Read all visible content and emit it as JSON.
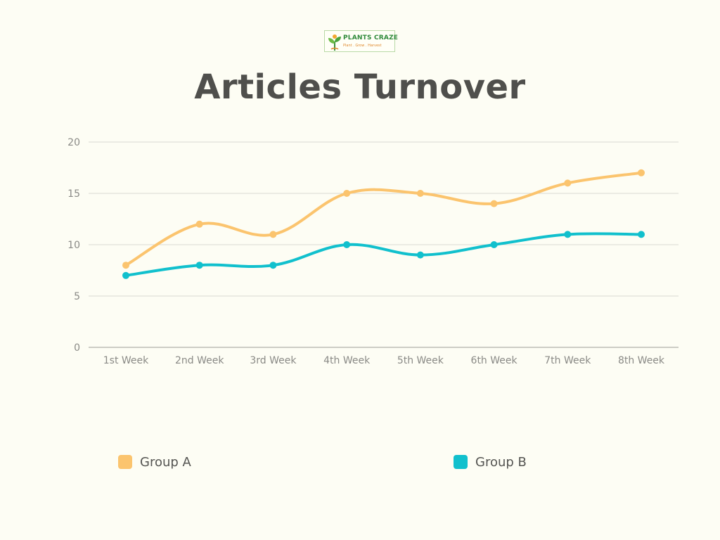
{
  "logo": {
    "brand": "PLANTS CRAZE",
    "tagline": "Plant . Grow . Harvest",
    "icon": "sprout-icon"
  },
  "chart_data": {
    "type": "line",
    "title": "Articles Turnover",
    "categories": [
      "1st Week",
      "2nd Week",
      "3rd Week",
      "4th Week",
      "5th Week",
      "6th Week",
      "7th Week",
      "8th Week"
    ],
    "series": [
      {
        "name": "Group A",
        "color": "#fbc46e",
        "values": [
          8,
          12,
          11,
          15,
          15,
          14,
          16,
          17
        ]
      },
      {
        "name": "Group B",
        "color": "#11c0cd",
        "values": [
          7,
          8,
          8,
          10,
          9,
          10,
          11,
          11
        ]
      }
    ],
    "yticks": [
      0,
      5,
      10,
      15,
      20
    ],
    "ylim": [
      0,
      20
    ],
    "grid": true,
    "legend": "bottom",
    "xlabel": "",
    "ylabel": ""
  }
}
